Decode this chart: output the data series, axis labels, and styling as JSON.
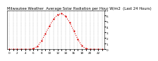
{
  "title": "Milwaukee Weather  Average Solar Radiation per Hour W/m2  (Last 24 Hours)",
  "x_hours": [
    0,
    1,
    2,
    3,
    4,
    5,
    6,
    7,
    8,
    9,
    10,
    11,
    12,
    13,
    14,
    15,
    16,
    17,
    18,
    19,
    20,
    21,
    22,
    23
  ],
  "y_values": [
    0,
    0,
    0,
    0,
    0,
    0,
    10,
    50,
    150,
    280,
    420,
    540,
    620,
    640,
    590,
    480,
    330,
    180,
    60,
    10,
    0,
    0,
    0,
    0
  ],
  "line_color": "#dd0000",
  "bg_color": "#ffffff",
  "plot_bg_color": "#ffffff",
  "grid_color": "#999999",
  "ylim": [
    0,
    700
  ],
  "xlim_min": -0.5,
  "xlim_max": 23.5,
  "yticks": [
    0,
    100,
    200,
    300,
    400,
    500,
    600,
    700
  ],
  "ytick_labels": [
    "0",
    "1",
    "2",
    "3",
    "4",
    "5",
    "6",
    "7"
  ],
  "xticks": [
    0,
    1,
    2,
    3,
    4,
    5,
    6,
    7,
    8,
    9,
    10,
    11,
    12,
    13,
    14,
    15,
    16,
    17,
    18,
    19,
    20,
    21,
    22,
    23
  ],
  "title_fontsize": 3.8,
  "tick_fontsize": 3.0,
  "line_width": 0.8,
  "marker_size": 1.2
}
